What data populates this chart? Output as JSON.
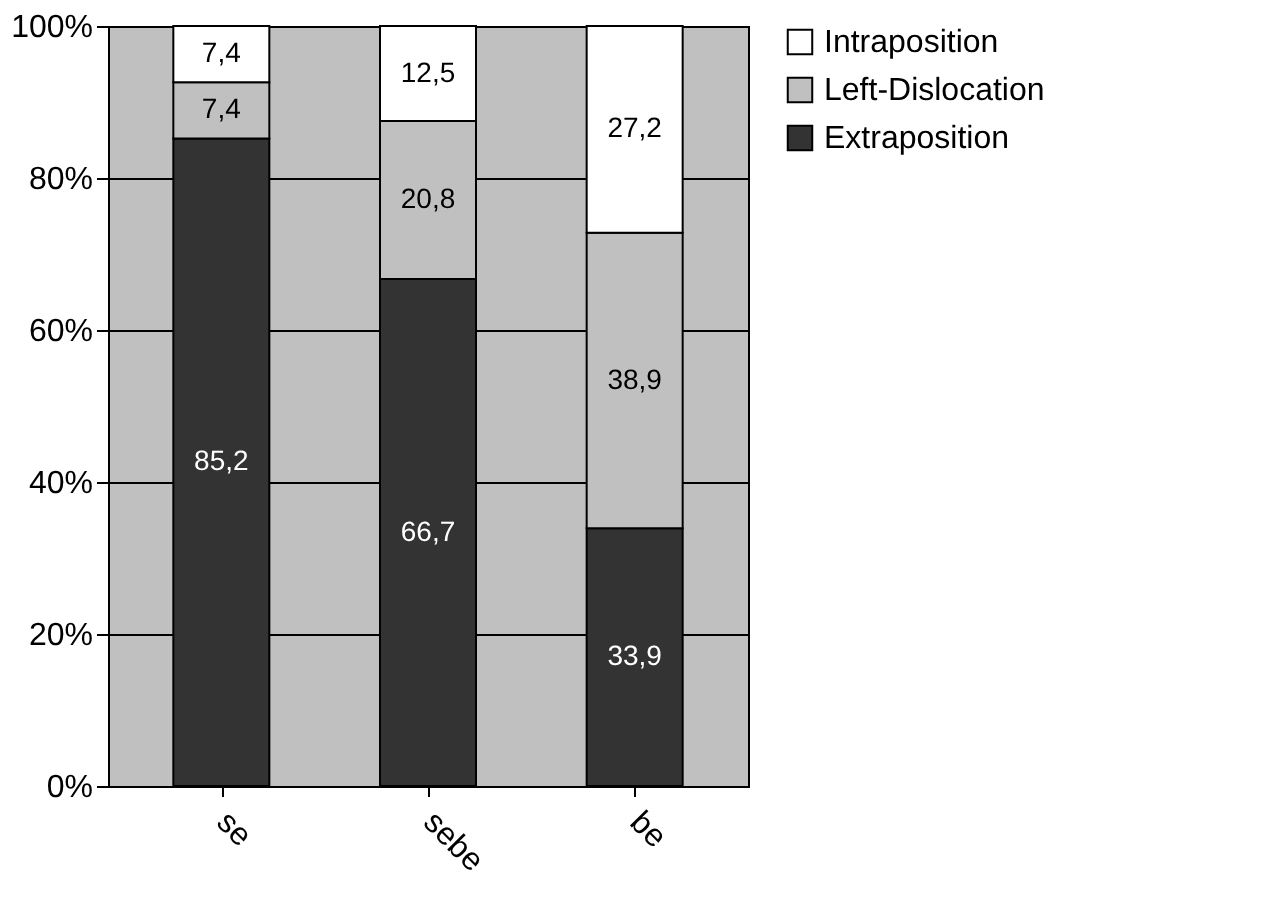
{
  "chart_data": {
    "type": "bar",
    "stacked": true,
    "categories": [
      "se",
      "sebe",
      "be"
    ],
    "series": [
      {
        "name": "Extraposition",
        "color": "#333333",
        "values": [
          85.2,
          66.7,
          33.9
        ],
        "value_labels": [
          "85,2",
          "66,7",
          "33,9"
        ]
      },
      {
        "name": "Left-Dislocation",
        "color": "#c0c0c0",
        "values": [
          7.4,
          20.8,
          38.9
        ],
        "value_labels": [
          "7,4",
          "20,8",
          "38,9"
        ]
      },
      {
        "name": "Intraposition",
        "color": "#ffffff",
        "values": [
          7.4,
          12.5,
          27.2
        ],
        "value_labels": [
          "7,4",
          "12,5",
          "27,2"
        ]
      }
    ],
    "ylim": [
      0,
      100
    ],
    "yticks": [
      {
        "value": 0,
        "label": "0%"
      },
      {
        "value": 20,
        "label": "20%"
      },
      {
        "value": 40,
        "label": "40%"
      },
      {
        "value": 60,
        "label": "60%"
      },
      {
        "value": 80,
        "label": "80%"
      },
      {
        "value": 100,
        "label": "100%"
      }
    ],
    "grid": "y",
    "legend": "right"
  }
}
